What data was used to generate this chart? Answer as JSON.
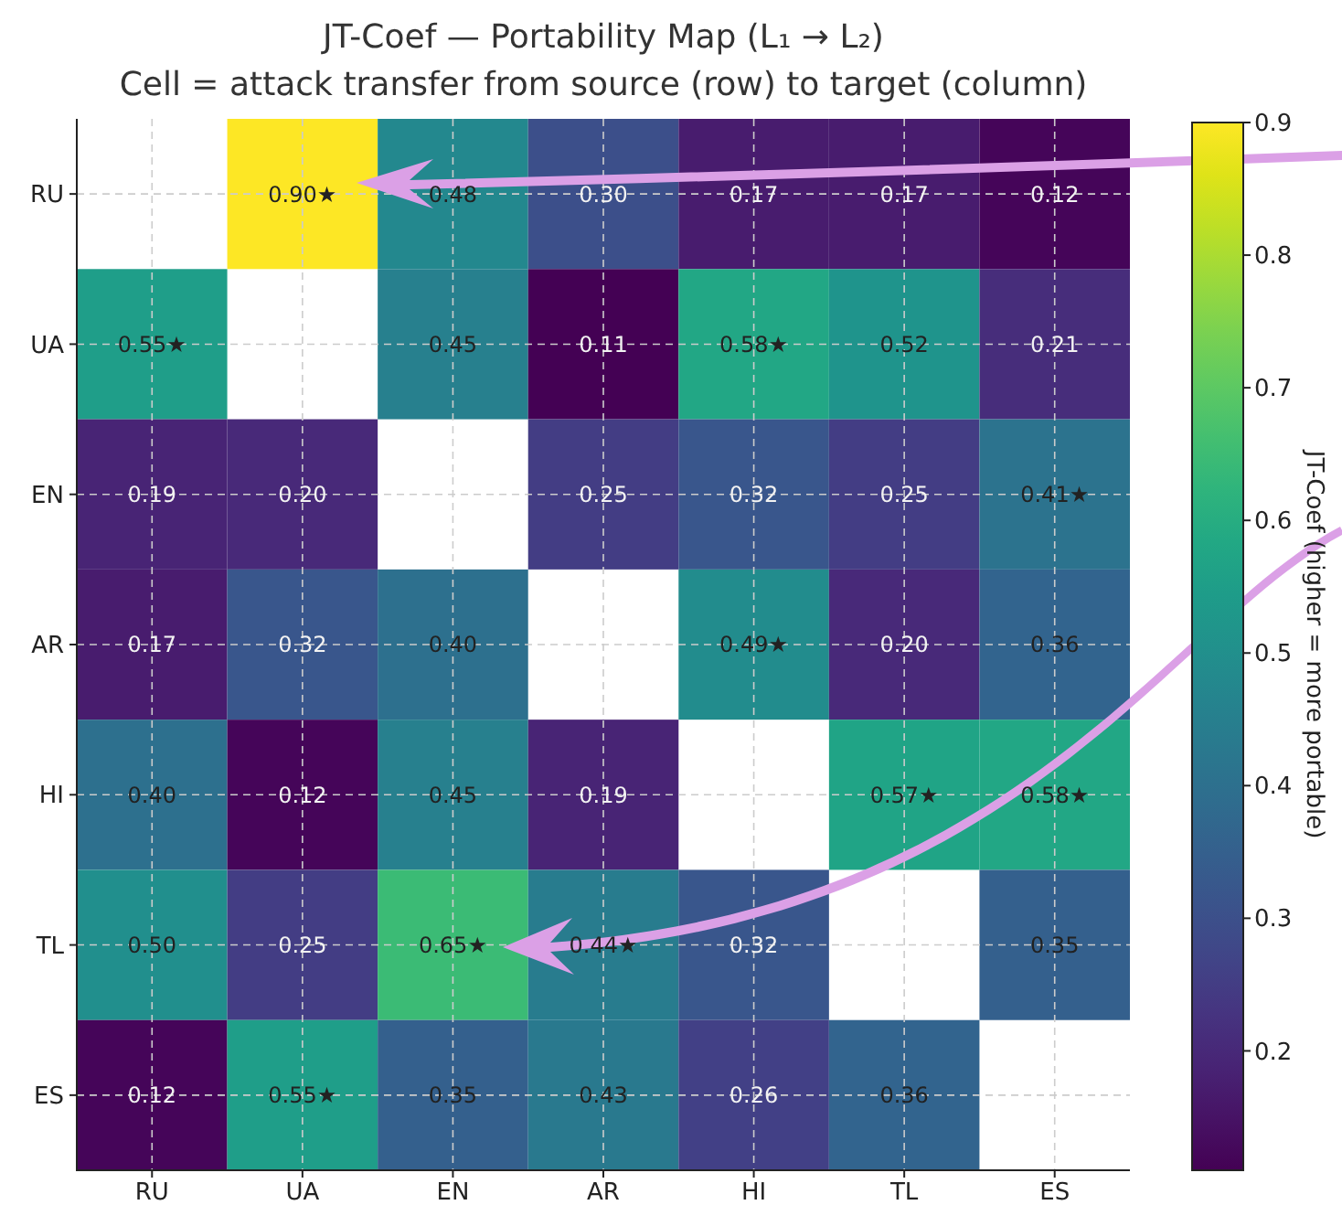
{
  "chart_data": {
    "type": "heatmap",
    "title": "JT-Coef — Portability Map (L₁ → L₂)",
    "subtitle": "Cell = attack transfer from source (row) to target (column)",
    "clabel": "JT-Coef (higher = more portable)",
    "categories": [
      "RU",
      "UA",
      "EN",
      "AR",
      "HI",
      "TL",
      "ES"
    ],
    "y_categories": [
      "RU",
      "UA",
      "EN",
      "AR",
      "HI",
      "TL",
      "ES"
    ],
    "cells": [
      [
        null,
        0.9,
        0.48,
        0.3,
        0.17,
        0.17,
        0.12
      ],
      [
        0.55,
        null,
        0.45,
        0.11,
        0.58,
        0.52,
        0.21
      ],
      [
        0.19,
        0.2,
        null,
        0.25,
        0.32,
        0.25,
        0.41
      ],
      [
        0.17,
        0.32,
        0.4,
        null,
        0.49,
        0.2,
        0.36
      ],
      [
        0.4,
        0.12,
        0.45,
        0.19,
        null,
        0.57,
        0.58
      ],
      [
        0.5,
        0.25,
        0.65,
        0.44,
        0.32,
        null,
        0.35
      ],
      [
        0.12,
        0.55,
        0.35,
        0.43,
        0.26,
        0.36,
        null
      ]
    ],
    "cell_labels": [
      [
        null,
        "0.90★",
        "0.48",
        "0.30",
        "0.17",
        "0.17",
        "0.12"
      ],
      [
        "0.55★",
        null,
        "0.45",
        "0.11",
        "0.58★",
        "0.52",
        "0.21"
      ],
      [
        "0.19",
        "0.20",
        null,
        "0.25",
        "0.32",
        "0.25",
        "0.41★"
      ],
      [
        "0.17",
        "0.32",
        "0.40",
        null,
        "0.49★",
        "0.20",
        "0.36"
      ],
      [
        "0.40",
        "0.12",
        "0.45",
        "0.19",
        null,
        "0.57★",
        "0.58★"
      ],
      [
        "0.50",
        "0.25",
        "0.65★",
        "0.44★",
        "0.32",
        null,
        "0.35"
      ],
      [
        "0.12",
        "0.55★",
        "0.35",
        "0.43",
        "0.26",
        "0.36",
        null
      ]
    ],
    "clim": [
      0.11,
      0.9
    ],
    "cticks": [
      {
        "value": 0.2,
        "label": "0.2"
      },
      {
        "value": 0.3,
        "label": "0.3"
      },
      {
        "value": 0.4,
        "label": "0.4"
      },
      {
        "value": 0.5,
        "label": "0.5"
      },
      {
        "value": 0.6,
        "label": "0.6"
      },
      {
        "value": 0.7,
        "label": "0.7"
      },
      {
        "value": 0.8,
        "label": "0.8"
      },
      {
        "value": 0.9,
        "label": "0.9"
      }
    ],
    "grid": true
  }
}
